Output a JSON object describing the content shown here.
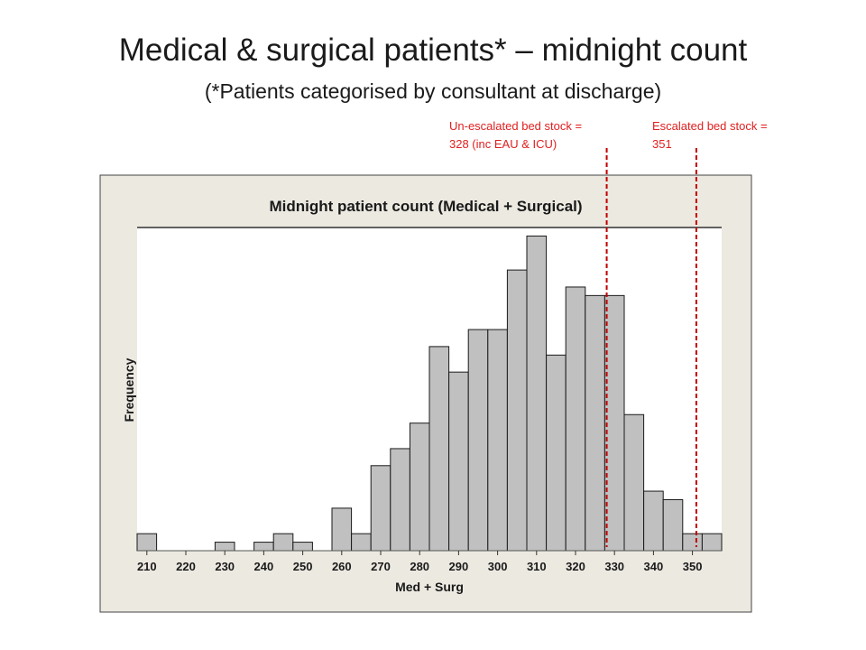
{
  "slide": {
    "title": "Medical & surgical patients* – midnight count",
    "subtitle": "(*Patients categorised by consultant at discharge)"
  },
  "annotations": [
    {
      "line1": "Un-escalated bed stock =",
      "line2": "328 (inc EAU & ICU)",
      "x_value": 328,
      "color": "#e02020"
    },
    {
      "line1": "Escalated bed stock =",
      "line2": "351",
      "x_value": 351,
      "color": "#e02020"
    }
  ],
  "chart_data": {
    "type": "bar",
    "subtype": "histogram",
    "title": "Midnight patient count (Medical + Surgical)",
    "xlabel": "Med + Surg",
    "ylabel": "Frequency",
    "x_tick_labels": [
      "210",
      "220",
      "230",
      "240",
      "250",
      "260",
      "270",
      "280",
      "290",
      "300",
      "310",
      "320",
      "330",
      "340",
      "350"
    ],
    "x_ticks": [
      210,
      220,
      230,
      240,
      250,
      260,
      270,
      280,
      290,
      300,
      310,
      320,
      330,
      340,
      350
    ],
    "xlim": [
      207.5,
      357.5
    ],
    "ylim": [
      0,
      19
    ],
    "bin_width": 5,
    "y_tick_labels_shown": false,
    "grid": false,
    "bars": [
      {
        "x": 210,
        "value": 1
      },
      {
        "x": 215,
        "value": 0
      },
      {
        "x": 220,
        "value": 0
      },
      {
        "x": 225,
        "value": 0
      },
      {
        "x": 230,
        "value": 0.5
      },
      {
        "x": 235,
        "value": 0
      },
      {
        "x": 240,
        "value": 0.5
      },
      {
        "x": 245,
        "value": 1
      },
      {
        "x": 250,
        "value": 0.5
      },
      {
        "x": 255,
        "value": 0
      },
      {
        "x": 260,
        "value": 2.5
      },
      {
        "x": 265,
        "value": 1
      },
      {
        "x": 270,
        "value": 5
      },
      {
        "x": 275,
        "value": 6
      },
      {
        "x": 280,
        "value": 7.5
      },
      {
        "x": 285,
        "value": 12
      },
      {
        "x": 290,
        "value": 10.5
      },
      {
        "x": 295,
        "value": 13
      },
      {
        "x": 300,
        "value": 13
      },
      {
        "x": 305,
        "value": 16.5
      },
      {
        "x": 310,
        "value": 18.5
      },
      {
        "x": 315,
        "value": 11.5
      },
      {
        "x": 320,
        "value": 15.5
      },
      {
        "x": 325,
        "value": 15
      },
      {
        "x": 330,
        "value": 15
      },
      {
        "x": 335,
        "value": 8
      },
      {
        "x": 340,
        "value": 3.5
      },
      {
        "x": 345,
        "value": 3
      },
      {
        "x": 350,
        "value": 1
      },
      {
        "x": 355,
        "value": 1
      }
    ],
    "colors": {
      "bar_fill": "#c0c0c0",
      "bar_stroke": "#1a1a1a",
      "frame_bg": "#ece9e1",
      "plot_bg": "#ffffff",
      "reference_line": "#c00000"
    }
  }
}
